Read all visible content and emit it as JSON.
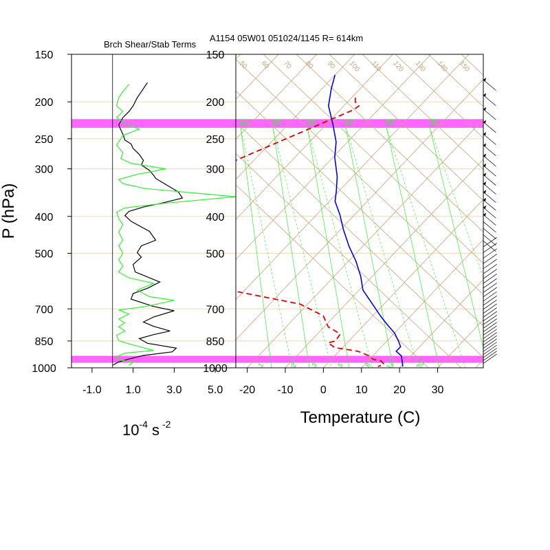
{
  "title_line": "A1154 05W01 051024/1145 R= 614km",
  "left_panel_title": "Brch Shear/Stab Terms",
  "y_axis_label": "P (hPa)",
  "left_units_base": "10",
  "left_units_exp": "-4",
  "left_units_s": "s",
  "left_units_s_exp": "-2",
  "right_axis_label": "Temperature (C)",
  "pressure_ticks": [
    "150",
    "200",
    "250",
    "300",
    "400",
    "500",
    "700",
    "850",
    "1000"
  ],
  "pressure_levels": [
    150,
    200,
    250,
    300,
    400,
    500,
    700,
    850,
    1000
  ],
  "left_x_ticks": [
    "-1.0",
    "1.0",
    "3.0",
    "5.0"
  ],
  "left_x_values": [
    -1,
    1,
    3,
    5
  ],
  "temp_ticks": [
    "-20",
    "-10",
    "0",
    "10",
    "20",
    "30"
  ],
  "temp_values": [
    -20,
    -10,
    0,
    10,
    20,
    30
  ],
  "mixing_ratio_labels": [
    "12",
    "16",
    "20",
    "24",
    "28",
    "32"
  ],
  "mixing_ratio_labels_lower": [
    "1",
    "2",
    "3",
    "5",
    "8",
    "12",
    "20"
  ],
  "rh_labels": [
    "50",
    "60",
    "70",
    "80",
    "90",
    "100",
    "110",
    "120",
    "130",
    "140",
    "150"
  ],
  "colors": {
    "background": "#ffffff",
    "frame": "#000000",
    "grid_brown": "#c8a27a",
    "pressure_grid": "#f0d9b5",
    "highlight_band": "#ff66ff",
    "green": "#33ee33",
    "black_trace": "#000000",
    "temperature": "#0000dd",
    "dewpoint": "#dd0000"
  },
  "chart_data": [
    {
      "type": "line",
      "panel": "left",
      "title": "Brch Shear/Stab Terms",
      "xlabel": "10^-4 s^-2",
      "ylabel": "P (hPa)",
      "xlim": [
        -2.0,
        6.0
      ],
      "ylim": [
        1000,
        150
      ],
      "y_scale": "log",
      "reference_line_x": 0.0,
      "highlight_bands_hpa": [
        [
          222,
          234
        ],
        [
          930,
          970
        ]
      ],
      "series": [
        {
          "color": "black",
          "points": [
            [
              1.7,
              178
            ],
            [
              1.4,
              188
            ],
            [
              1.2,
              195
            ],
            [
              1.0,
              205
            ],
            [
              0.8,
              212
            ],
            [
              0.5,
              220
            ],
            [
              0.3,
              230
            ],
            [
              0.4,
              237
            ],
            [
              0.5,
              243
            ],
            [
              0.6,
              252
            ],
            [
              0.9,
              258
            ],
            [
              1.0,
              265
            ],
            [
              1.3,
              275
            ],
            [
              1.5,
              285
            ],
            [
              1.4,
              293
            ],
            [
              1.8,
              303
            ],
            [
              2.0,
              312
            ],
            [
              2.1,
              318
            ],
            [
              2.6,
              330
            ],
            [
              3.2,
              345
            ],
            [
              3.4,
              358
            ],
            [
              2.5,
              368
            ],
            [
              1.5,
              378
            ],
            [
              0.8,
              388
            ],
            [
              0.6,
              398
            ],
            [
              0.9,
              412
            ],
            [
              1.8,
              438
            ],
            [
              2.1,
              462
            ],
            [
              1.4,
              478
            ],
            [
              1.2,
              498
            ],
            [
              1.4,
              512
            ],
            [
              1.0,
              535
            ],
            [
              1.1,
              560
            ],
            [
              2.3,
              595
            ],
            [
              1.7,
              618
            ],
            [
              1.0,
              638
            ],
            [
              0.9,
              660
            ],
            [
              2.0,
              690
            ],
            [
              3.0,
              708
            ],
            [
              2.0,
              735
            ],
            [
              1.5,
              758
            ],
            [
              2.0,
              778
            ],
            [
              2.8,
              800
            ],
            [
              2.0,
              818
            ],
            [
              1.3,
              838
            ],
            [
              1.7,
              862
            ],
            [
              3.1,
              888
            ],
            [
              2.9,
              908
            ],
            [
              1.5,
              928
            ],
            [
              0.8,
              948
            ],
            [
              0.3,
              965
            ],
            [
              0.0,
              985
            ]
          ]
        },
        {
          "color": "green",
          "points": [
            [
              0.8,
              180
            ],
            [
              0.5,
              188
            ],
            [
              0.3,
              195
            ],
            [
              0.2,
              205
            ],
            [
              0.5,
              212
            ],
            [
              0.2,
              220
            ],
            [
              0.6,
              228
            ],
            [
              1.3,
              236
            ],
            [
              0.5,
              245
            ],
            [
              0.2,
              260
            ],
            [
              0.5,
              272
            ],
            [
              0.4,
              282
            ],
            [
              0.9,
              290
            ],
            [
              2.6,
              300
            ],
            [
              1.2,
              310
            ],
            [
              0.3,
              320
            ],
            [
              0.5,
              328
            ],
            [
              1.6,
              338
            ],
            [
              6.0,
              355
            ],
            [
              2.4,
              370
            ],
            [
              0.6,
              380
            ],
            [
              0.2,
              390
            ],
            [
              0.3,
              405
            ],
            [
              0.5,
              420
            ],
            [
              0.3,
              440
            ],
            [
              0.5,
              462
            ],
            [
              0.3,
              478
            ],
            [
              0.5,
              500
            ],
            [
              0.3,
              520
            ],
            [
              0.5,
              540
            ],
            [
              0.3,
              560
            ],
            [
              0.8,
              580
            ],
            [
              2.0,
              600
            ],
            [
              1.2,
              625
            ],
            [
              1.8,
              650
            ],
            [
              3.0,
              665
            ],
            [
              1.6,
              690
            ],
            [
              0.3,
              705
            ],
            [
              0.8,
              722
            ],
            [
              0.3,
              745
            ],
            [
              0.6,
              762
            ],
            [
              0.3,
              780
            ],
            [
              0.6,
              800
            ],
            [
              0.2,
              822
            ],
            [
              0.3,
              848
            ],
            [
              0.8,
              865
            ],
            [
              2.0,
              900
            ],
            [
              0.6,
              915
            ],
            [
              0.2,
              935
            ],
            [
              0.4,
              955
            ],
            [
              1.0,
              968
            ],
            [
              0.8,
              985
            ]
          ]
        }
      ]
    },
    {
      "type": "line",
      "panel": "right",
      "subtype": "skew-t",
      "title": "A1154 05W01 051024/1145 R= 614km",
      "xlabel": "Temperature (C)",
      "ylabel": "P (hPa)",
      "xlim": [
        -23,
        42
      ],
      "ylim": [
        1000,
        150
      ],
      "y_scale": "log",
      "series": [
        {
          "name": "",
          "color": "blue",
          "style": "solid",
          "points": [
            [
              -70.0,
              170
            ],
            [
              -67.5,
              185
            ],
            [
              -64.0,
              205
            ],
            [
              -58.5,
              228
            ],
            [
              -53.0,
              255
            ],
            [
              -49.5,
              280
            ],
            [
              -44.0,
              315
            ],
            [
              -40.5,
              345
            ],
            [
              -38.5,
              365
            ],
            [
              -34.0,
              395
            ],
            [
              -29.0,
              435
            ],
            [
              -23.5,
              480
            ],
            [
              -18.0,
              525
            ],
            [
              -13.0,
              575
            ],
            [
              -9.0,
              625
            ],
            [
              -3.0,
              680
            ],
            [
              2.0,
              730
            ],
            [
              6.0,
              770
            ],
            [
              10.0,
              810
            ],
            [
              13.0,
              850
            ],
            [
              15.0,
              880
            ],
            [
              15.0,
              905
            ],
            [
              17.5,
              930
            ],
            [
              19.0,
              960
            ],
            [
              20.5,
              992
            ]
          ]
        },
        {
          "name": "",
          "color": "red",
          "style": "dashed",
          "points": [
            [
              -59.0,
              195
            ],
            [
              -58.0,
              200
            ],
            [
              -56.0,
              205
            ],
            [
              -56.5,
              210
            ],
            [
              -92.0,
              380
            ],
            [
              -89.0,
              385
            ],
            [
              -84.0,
              392
            ],
            [
              -86.0,
              398
            ],
            [
              -79.0,
              420
            ],
            [
              -70.0,
              455
            ],
            [
              -69.0,
              475
            ],
            [
              -57.5,
              495
            ],
            [
              -55.0,
              512
            ],
            [
              -62.0,
              548
            ],
            [
              -55.0,
              575
            ],
            [
              -52.0,
              598
            ],
            [
              -42.0,
              630
            ],
            [
              -22.0,
              680
            ],
            [
              -13.0,
              730
            ],
            [
              -9.0,
              780
            ],
            [
              -4.0,
              815
            ],
            [
              -3.5,
              850
            ],
            [
              -5.0,
              860
            ],
            [
              -2.0,
              885
            ],
            [
              5.0,
              905
            ],
            [
              9.0,
              930
            ],
            [
              11.0,
              950
            ],
            [
              13.5,
              960
            ],
            [
              15.0,
              978
            ],
            [
              14.0,
              992
            ]
          ]
        }
      ]
    }
  ]
}
